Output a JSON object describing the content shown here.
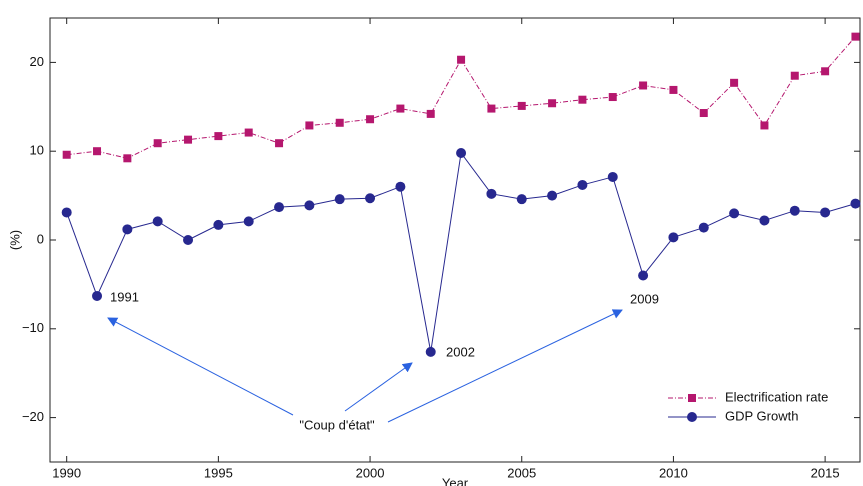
{
  "chart_data": {
    "type": "line",
    "x_label": "Year",
    "y_label": "(%)",
    "x": [
      1990,
      1991,
      1992,
      1993,
      1994,
      1995,
      1996,
      1997,
      1998,
      1999,
      2000,
      2001,
      2002,
      2003,
      2004,
      2005,
      2006,
      2007,
      2008,
      2009,
      2010,
      2011,
      2012,
      2013,
      2014,
      2015,
      2016
    ],
    "series": [
      {
        "name": "Electrification rate",
        "color": "#b5176e",
        "marker": "square",
        "values": [
          9.6,
          10.0,
          9.2,
          10.9,
          11.3,
          11.7,
          12.1,
          10.9,
          12.9,
          13.2,
          13.6,
          14.8,
          14.2,
          20.3,
          14.8,
          15.1,
          15.4,
          15.8,
          16.1,
          17.4,
          16.9,
          14.3,
          17.7,
          12.9,
          18.5,
          19.0,
          22.9
        ]
      },
      {
        "name": "GDP Growth",
        "color": "#27288f",
        "marker": "circle",
        "values": [
          3.1,
          -6.3,
          1.2,
          2.1,
          0.0,
          1.7,
          2.1,
          3.7,
          3.9,
          4.6,
          4.7,
          6.0,
          -12.6,
          9.8,
          5.2,
          4.6,
          5.0,
          6.2,
          7.1,
          -4.0,
          0.3,
          1.4,
          3.0,
          2.2,
          3.3,
          3.1,
          4.1
        ]
      }
    ],
    "annotations": [
      "1991",
      "2002",
      "2009",
      "\"Coup d'état\""
    ],
    "xlim": [
      1989.45,
      2016.15
    ],
    "ylim": [
      -25,
      25
    ],
    "xticks": [
      1990,
      1995,
      2000,
      2005,
      2010,
      2015
    ],
    "yticks": [
      {
        "value": -20,
        "label": "−20"
      },
      {
        "value": -10,
        "label": "−10"
      },
      0,
      10,
      20
    ],
    "legend": "lower right"
  }
}
